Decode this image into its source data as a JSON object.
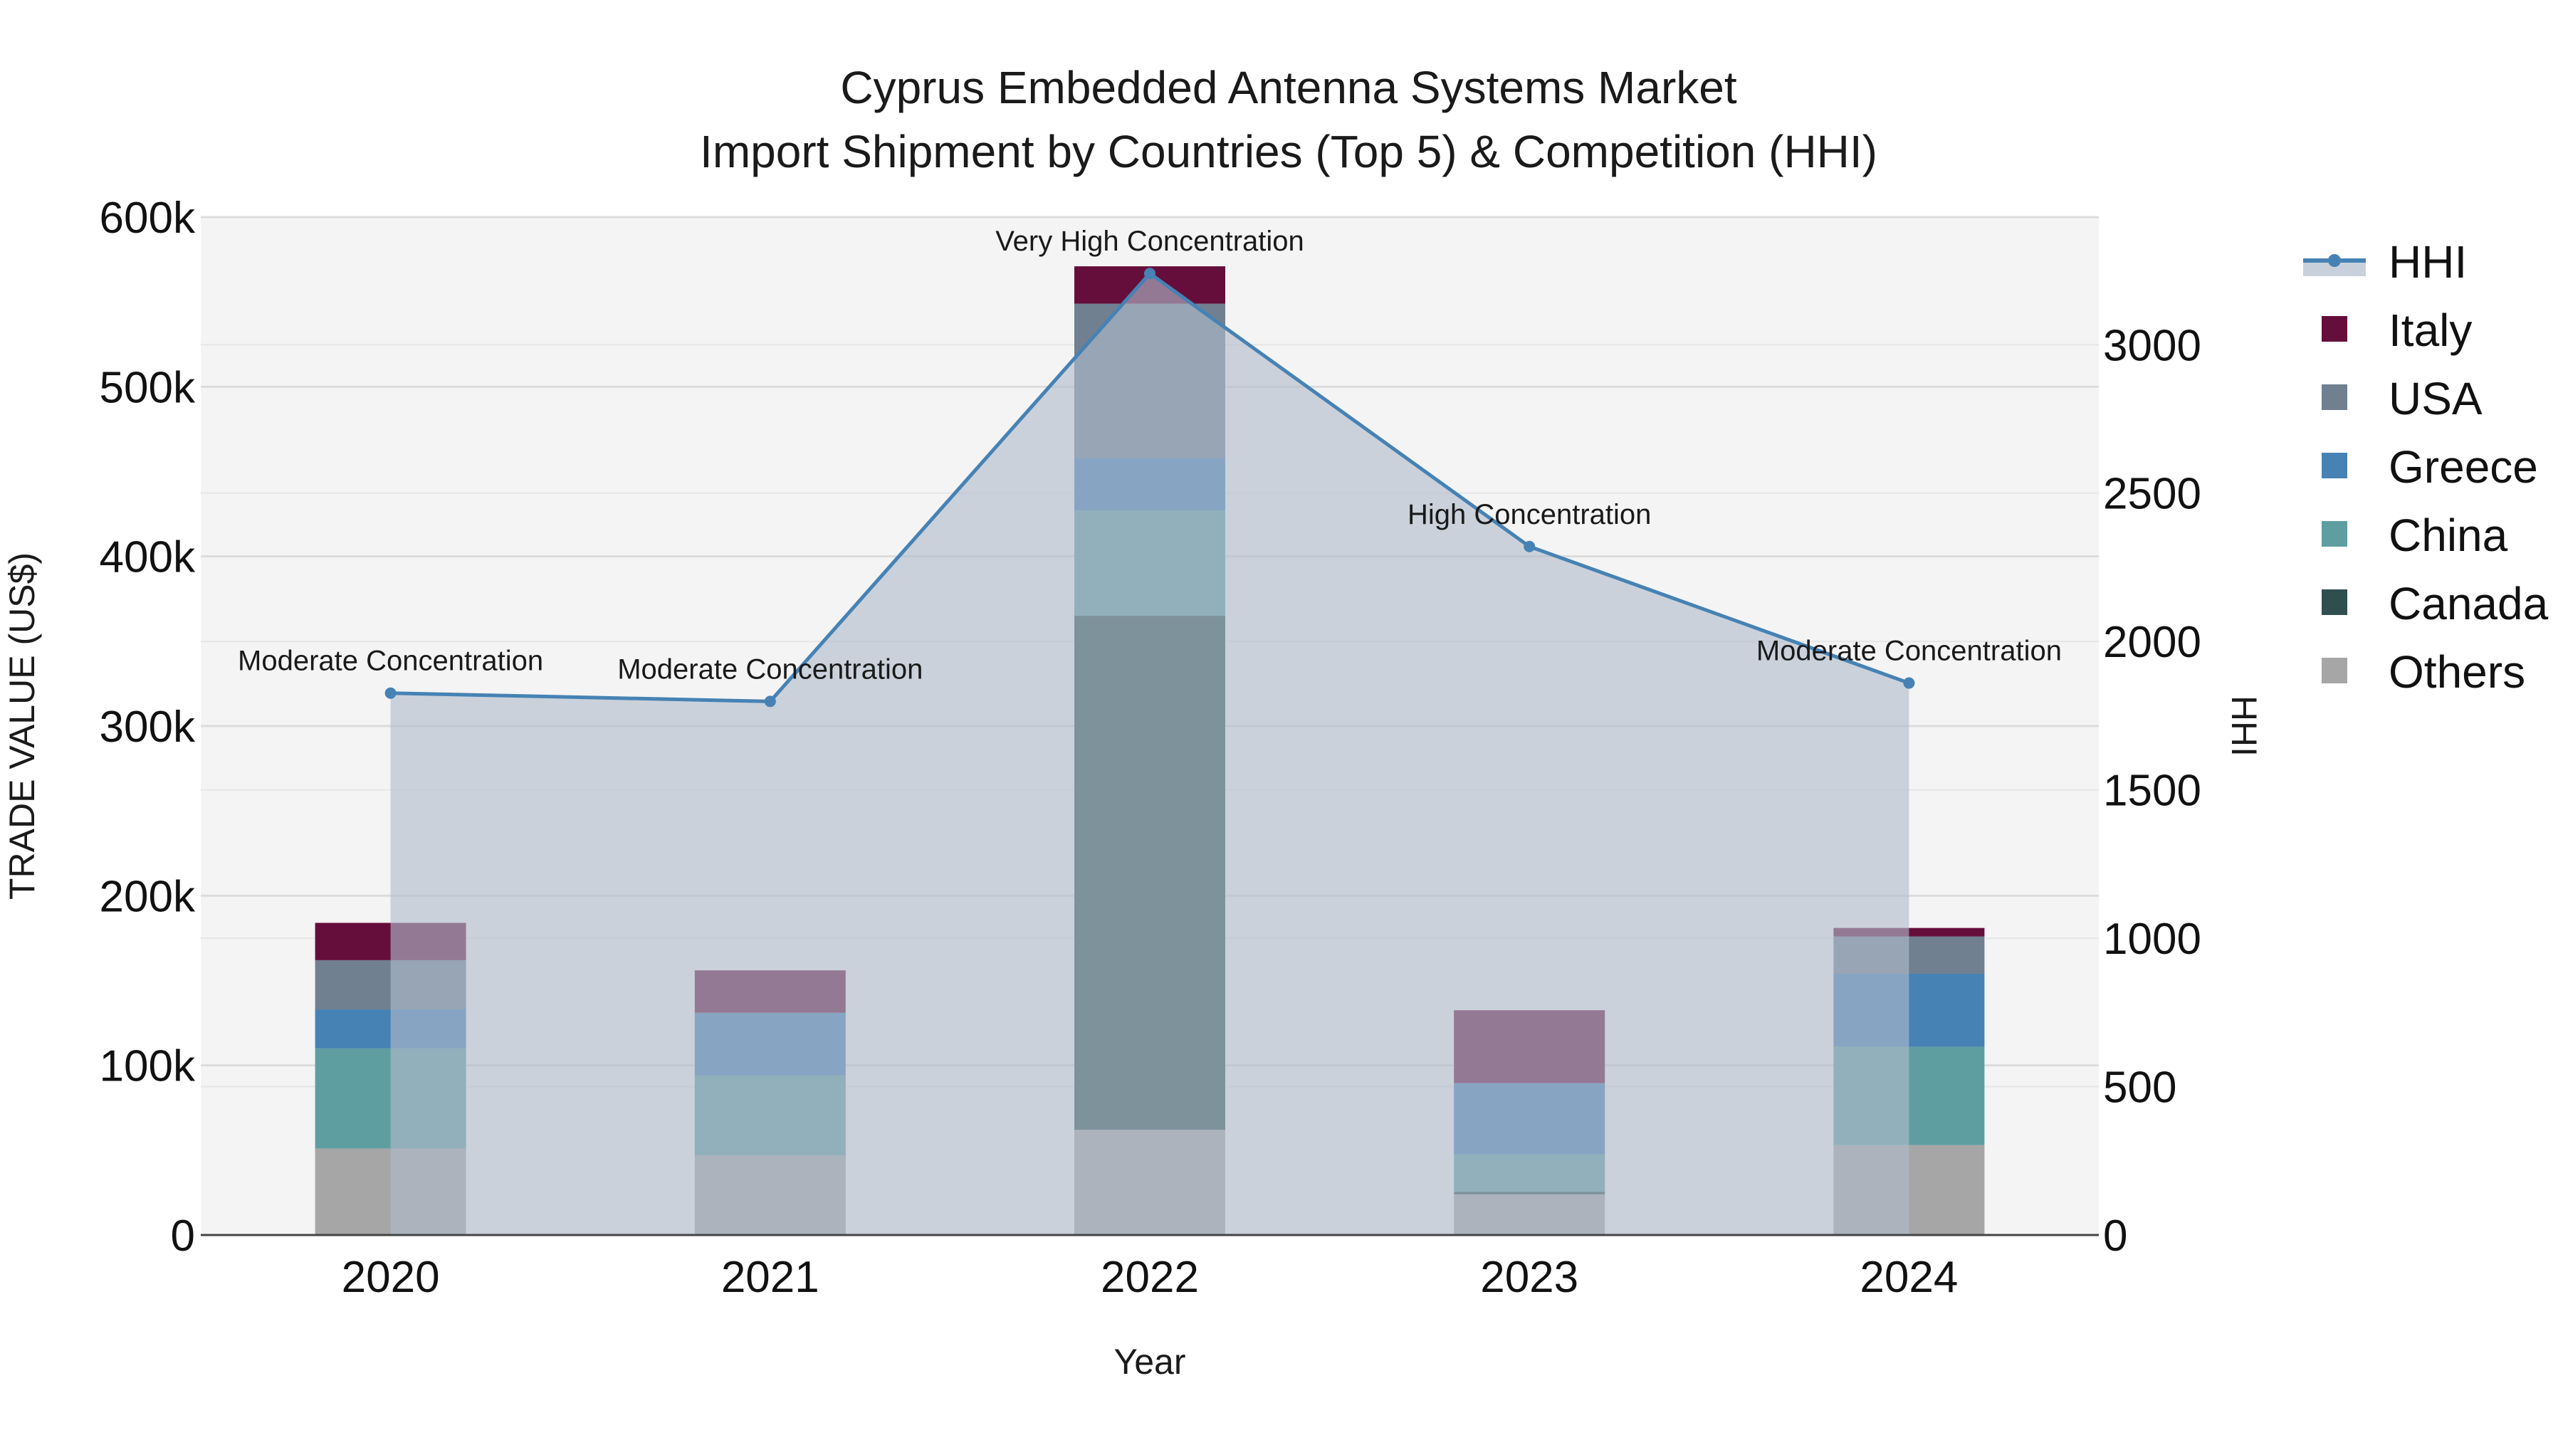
{
  "chart_data": {
    "type": "bar",
    "title_lines": [
      "Cyprus Embedded Antenna Systems Market",
      "Import Shipment by Countries (Top 5) & Competition (HHI)"
    ],
    "xlabel": "Year",
    "ylabel": "TRADE VALUE (US$)",
    "y2label": "HHI",
    "categories": [
      "2020",
      "2021",
      "2022",
      "2023",
      "2024"
    ],
    "ylim": [
      0,
      600000
    ],
    "y_ticks": [
      0,
      100000,
      200000,
      300000,
      400000,
      500000,
      600000
    ],
    "y_tick_labels": [
      "0",
      "100k",
      "200k",
      "300k",
      "400k",
      "500k",
      "600k"
    ],
    "y2lim": [
      0,
      3430
    ],
    "y2_ticks": [
      0,
      500,
      1000,
      1500,
      2000,
      2500,
      3000
    ],
    "y2_tick_labels": [
      "0",
      "500",
      "1000",
      "1500",
      "2000",
      "2500",
      "3000"
    ],
    "stack_order": [
      "Others",
      "Canada",
      "China",
      "Greece",
      "USA",
      "Italy"
    ],
    "series": [
      {
        "name": "Others",
        "color": "#a6a6a6",
        "values": [
          51000,
          47000,
          62000,
          24000,
          53000
        ]
      },
      {
        "name": "Canada",
        "color": "#2f4f4f",
        "values": [
          0,
          0,
          303000,
          1500,
          0
        ]
      },
      {
        "name": "China",
        "color": "#5f9ea0",
        "values": [
          59000,
          47000,
          62000,
          22000,
          58000
        ]
      },
      {
        "name": "Greece",
        "color": "#4682b4",
        "values": [
          23000,
          37000,
          31000,
          42000,
          43000
        ]
      },
      {
        "name": "USA",
        "color": "#708090",
        "values": [
          29000,
          0,
          91000,
          0,
          22000
        ]
      },
      {
        "name": "Italy",
        "color": "#660e3b",
        "values": [
          22000,
          25000,
          22000,
          43000,
          5000
        ]
      }
    ],
    "hhi": {
      "name": "HHI",
      "color": "#4682b4",
      "values": [
        1826,
        1798,
        3240,
        2320,
        1860
      ],
      "annotations": [
        "Moderate Concentration",
        "Moderate Concentration",
        "Very High Concentration",
        "High Concentration",
        "Moderate Concentration"
      ]
    },
    "legend": {
      "placement": "top-right",
      "entries": [
        "HHI",
        "Italy",
        "USA",
        "Greece",
        "China",
        "Canada",
        "Others"
      ]
    },
    "grid": true
  }
}
